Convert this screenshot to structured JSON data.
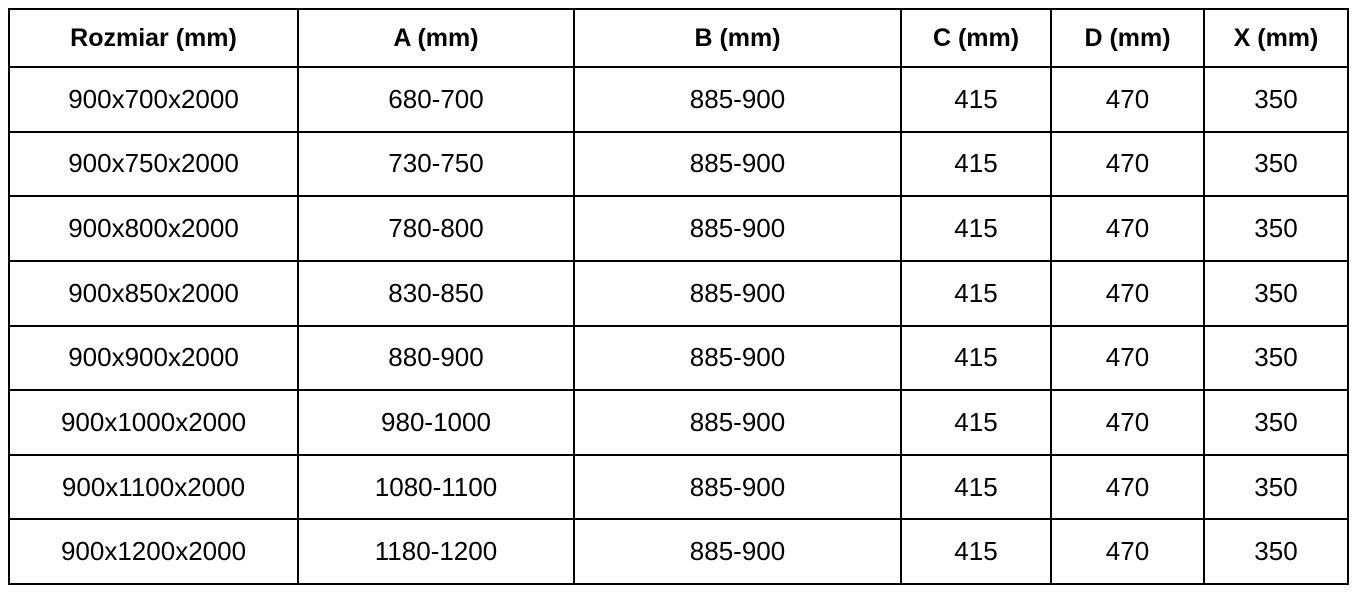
{
  "table": {
    "headers": {
      "rozmiar": "Rozmiar (mm)",
      "a": "A (mm)",
      "b": "B (mm)",
      "c": "C (mm)",
      "d": "D (mm)",
      "x": "X (mm)"
    },
    "rows": [
      [
        "900x700x2000",
        "680-700",
        "885-900",
        "415",
        "470",
        "350"
      ],
      [
        "900x750x2000",
        "730-750",
        "885-900",
        "415",
        "470",
        "350"
      ],
      [
        "900x800x2000",
        "780-800",
        "885-900",
        "415",
        "470",
        "350"
      ],
      [
        "900x850x2000",
        "830-850",
        "885-900",
        "415",
        "470",
        "350"
      ],
      [
        "900x900x2000",
        "880-900",
        "885-900",
        "415",
        "470",
        "350"
      ],
      [
        "900x1000x2000",
        "980-1000",
        "885-900",
        "415",
        "470",
        "350"
      ],
      [
        "900x1100x2000",
        "1080-1100",
        "885-900",
        "415",
        "470",
        "350"
      ],
      [
        "900x1200x2000",
        "1180-1200",
        "885-900",
        "415",
        "470",
        "350"
      ]
    ],
    "colors": {
      "border": "#000000",
      "text": "#000000",
      "background": "#ffffff"
    }
  }
}
